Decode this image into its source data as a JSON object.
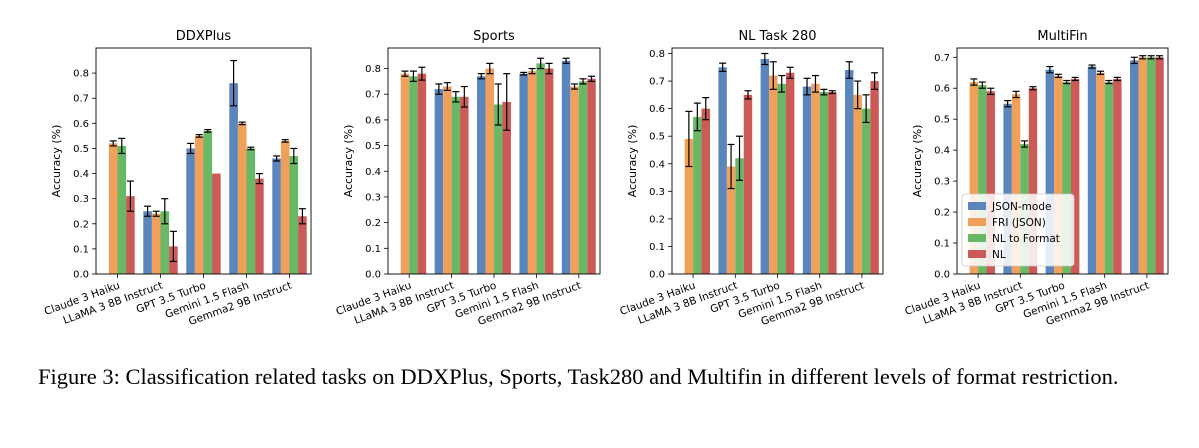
{
  "colors": {
    "JSON-mode": "#5b86bd",
    "FRI (JSON)": "#f0a05a",
    "NL to Format": "#68b865",
    "NL": "#cc5a57"
  },
  "caption": {
    "text": "Figure 3: Classification related tasks on DDXPlus, Sports, Task280 and Multifin in different levels of format restriction."
  },
  "chart_data": [
    {
      "type": "bar",
      "title": "DDXPlus",
      "ylabel": "Accuracy (%)",
      "xlabel": "",
      "ylim": [
        0,
        0.9
      ],
      "yticks": [
        "0.0",
        "0.1",
        "0.2",
        "0.3",
        "0.4",
        "0.5",
        "0.6",
        "0.7",
        "0.8"
      ],
      "categories": [
        "Claude 3 Haiku",
        "LLaMA 3 8B Instruct",
        "GPT 3.5 Turbo",
        "Gemini 1.5 Flash",
        "Gemma2 9B Instruct"
      ],
      "series": [
        {
          "name": "JSON-mode",
          "values": [
            0.0,
            0.25,
            0.5,
            0.76,
            0.46
          ],
          "errors": [
            0.0,
            0.02,
            0.02,
            0.09,
            0.01
          ]
        },
        {
          "name": "FRI (JSON)",
          "values": [
            0.52,
            0.24,
            0.55,
            0.6,
            0.53
          ],
          "errors": [
            0.01,
            0.01,
            0.005,
            0.005,
            0.005
          ]
        },
        {
          "name": "NL to Format",
          "values": [
            0.51,
            0.25,
            0.57,
            0.5,
            0.47
          ],
          "errors": [
            0.03,
            0.05,
            0.005,
            0.005,
            0.03
          ]
        },
        {
          "name": "NL",
          "values": [
            0.31,
            0.11,
            0.4,
            0.38,
            0.23
          ],
          "errors": [
            0.06,
            0.06,
            0.0,
            0.02,
            0.03
          ]
        }
      ]
    },
    {
      "type": "bar",
      "title": "Sports",
      "ylabel": "Accuracy (%)",
      "xlabel": "",
      "ylim": [
        0,
        0.88
      ],
      "yticks": [
        "0.0",
        "0.1",
        "0.2",
        "0.3",
        "0.4",
        "0.5",
        "0.6",
        "0.7",
        "0.8"
      ],
      "categories": [
        "Claude 3 Haiku",
        "LLaMA 3 8B Instruct",
        "GPT 3.5 Turbo",
        "Gemini 1.5 Flash",
        "Gemma2 9B Instruct"
      ],
      "series": [
        {
          "name": "JSON-mode",
          "values": [
            0.0,
            0.72,
            0.77,
            0.78,
            0.83
          ],
          "errors": [
            0.0,
            0.02,
            0.01,
            0.005,
            0.01
          ]
        },
        {
          "name": "FRI (JSON)",
          "values": [
            0.78,
            0.73,
            0.8,
            0.79,
            0.73
          ],
          "errors": [
            0.01,
            0.015,
            0.02,
            0.01,
            0.01
          ]
        },
        {
          "name": "NL to Format",
          "values": [
            0.77,
            0.69,
            0.66,
            0.82,
            0.75
          ],
          "errors": [
            0.02,
            0.02,
            0.08,
            0.02,
            0.01
          ]
        },
        {
          "name": "NL",
          "values": [
            0.78,
            0.69,
            0.67,
            0.8,
            0.76
          ],
          "errors": [
            0.025,
            0.04,
            0.11,
            0.02,
            0.01
          ]
        }
      ]
    },
    {
      "type": "bar",
      "title": "NL Task 280",
      "ylabel": "Accuracy (%)",
      "xlabel": "",
      "ylim": [
        0,
        0.82
      ],
      "yticks": [
        "0.0",
        "0.1",
        "0.2",
        "0.3",
        "0.4",
        "0.5",
        "0.6",
        "0.7",
        "0.8"
      ],
      "categories": [
        "Claude 3 Haiku",
        "LLaMA 3 8B Instruct",
        "GPT 3.5 Turbo",
        "Gemini 1.5 Flash",
        "Gemma2 9B Instruct"
      ],
      "series": [
        {
          "name": "JSON-mode",
          "values": [
            0.0,
            0.75,
            0.78,
            0.68,
            0.74
          ],
          "errors": [
            0.0,
            0.015,
            0.02,
            0.03,
            0.03
          ]
        },
        {
          "name": "FRI (JSON)",
          "values": [
            0.49,
            0.39,
            0.72,
            0.69,
            0.65
          ],
          "errors": [
            0.1,
            0.08,
            0.05,
            0.03,
            0.05
          ]
        },
        {
          "name": "NL to Format",
          "values": [
            0.57,
            0.42,
            0.69,
            0.66,
            0.6
          ],
          "errors": [
            0.05,
            0.08,
            0.03,
            0.01,
            0.05
          ]
        },
        {
          "name": "NL",
          "values": [
            0.6,
            0.65,
            0.73,
            0.66,
            0.7
          ],
          "errors": [
            0.04,
            0.015,
            0.02,
            0.005,
            0.03
          ]
        }
      ]
    },
    {
      "type": "bar",
      "title": "MultiFin",
      "ylabel": "Accuracy (%)",
      "xlabel": "",
      "ylim": [
        0,
        0.73
      ],
      "yticks": [
        "0.0",
        "0.1",
        "0.2",
        "0.3",
        "0.4",
        "0.5",
        "0.6",
        "0.7"
      ],
      "legend_position": "lower-left",
      "legend": [
        "JSON-mode",
        "FRI (JSON)",
        "NL to Format",
        "NL"
      ],
      "categories": [
        "Claude 3 Haiku",
        "LLaMA 3 8B Instruct",
        "GPT 3.5 Turbo",
        "Gemini 1.5 Flash",
        "Gemma2 9B Instruct"
      ],
      "series": [
        {
          "name": "JSON-mode",
          "values": [
            0.0,
            0.55,
            0.66,
            0.67,
            0.69
          ],
          "errors": [
            0.0,
            0.01,
            0.01,
            0.005,
            0.01
          ]
        },
        {
          "name": "FRI (JSON)",
          "values": [
            0.62,
            0.58,
            0.64,
            0.65,
            0.7
          ],
          "errors": [
            0.01,
            0.01,
            0.005,
            0.005,
            0.005
          ]
        },
        {
          "name": "NL to Format",
          "values": [
            0.61,
            0.42,
            0.62,
            0.62,
            0.7
          ],
          "errors": [
            0.01,
            0.01,
            0.005,
            0.005,
            0.005
          ]
        },
        {
          "name": "NL",
          "values": [
            0.59,
            0.6,
            0.63,
            0.63,
            0.7
          ],
          "errors": [
            0.01,
            0.005,
            0.005,
            0.005,
            0.005
          ]
        }
      ]
    }
  ]
}
